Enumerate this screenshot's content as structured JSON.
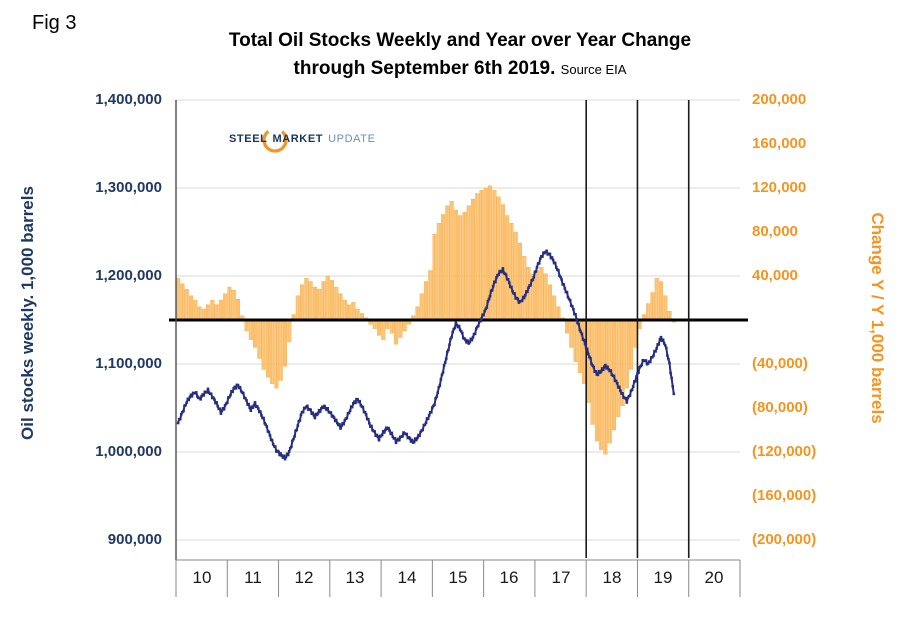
{
  "fig_label": "Fig 3",
  "title": {
    "line1": "Total Oil Stocks Weekly and Year over Year Change",
    "line2": "through September 6th 2019.",
    "source": "Source EIA"
  },
  "logo": {
    "word1": "STEEL",
    "word2": "MARKET",
    "word3": "UPDATE"
  },
  "colors": {
    "navy": "#1f3864",
    "orange": "#f79420",
    "line": "#272e82",
    "bar_fill": "#fbc87f",
    "bar_stroke": "#f5a12d",
    "grid": "#d8d8d8",
    "axis": "#8a8a8a",
    "dark_line": "#1a1a1a",
    "zero_line": "#000000"
  },
  "chart_data": {
    "type": "combo: bar + line (dual axis)",
    "title": "Total Oil Stocks Weekly and Year over Year Change through September 6th 2019",
    "grid": "horizontal light gray",
    "left_axis": {
      "label": "Oil stocks weekly. 1,000 barrels",
      "min": 900000,
      "max": 1400000,
      "tick_step": 100000,
      "ticks": [
        {
          "label": "1,400,000",
          "value": 1400000
        },
        {
          "label": "1,300,000",
          "value": 1300000
        },
        {
          "label": "1,200,000",
          "value": 1200000
        },
        {
          "label": "1,100,000",
          "value": 1100000
        },
        {
          "label": "1,000,000",
          "value": 1000000
        },
        {
          "label": "900,000",
          "value": 900000
        }
      ]
    },
    "right_axis": {
      "label": "Change Y / Y 1,000 barrels",
      "min": -200000,
      "max": 200000,
      "tick_step": 40000,
      "zero_at_left_value": 1150000,
      "ticks": [
        {
          "label": "200,000",
          "value": 200000
        },
        {
          "label": "160,000",
          "value": 160000
        },
        {
          "label": "120,000",
          "value": 120000
        },
        {
          "label": "80,000",
          "value": 80000
        },
        {
          "label": "40,000",
          "value": 40000
        },
        {
          "label": "(40,000)",
          "value": -40000
        },
        {
          "label": "(80,000)",
          "value": -80000
        },
        {
          "label": "(120,000)",
          "value": -120000
        },
        {
          "label": "(160,000)",
          "value": -160000
        },
        {
          "label": "(200,000)",
          "value": -200000
        }
      ]
    },
    "x_axis": {
      "start_year": 2010,
      "end_year": 2021,
      "labels": [
        "10",
        "11",
        "12",
        "13",
        "14",
        "15",
        "16",
        "17",
        "18",
        "19",
        "20"
      ]
    },
    "reference": {
      "zero_line_left_value": 1150000,
      "dark_vertical_year_lines": [
        2018,
        2019,
        2020
      ]
    },
    "series": [
      {
        "name": "Total oil stocks weekly",
        "type": "line",
        "axis": "left",
        "marker": "square",
        "color": "#272e82",
        "start": "2010-01",
        "interval": "monthly",
        "values": [
          1033000,
          1045000,
          1057000,
          1064000,
          1068000,
          1060000,
          1066000,
          1070000,
          1063000,
          1055000,
          1045000,
          1052000,
          1063000,
          1072000,
          1076000,
          1068000,
          1058000,
          1048000,
          1055000,
          1047000,
          1037000,
          1025000,
          1012000,
          1002000,
          997000,
          993000,
          1000000,
          1015000,
          1030000,
          1045000,
          1052000,
          1047000,
          1040000,
          1046000,
          1052000,
          1048000,
          1042000,
          1035000,
          1028000,
          1035000,
          1045000,
          1055000,
          1060000,
          1052000,
          1042000,
          1030000,
          1022000,
          1015000,
          1022000,
          1028000,
          1020000,
          1012000,
          1016000,
          1022000,
          1016000,
          1011000,
          1016000,
          1024000,
          1034000,
          1044000,
          1055000,
          1072000,
          1092000,
          1112000,
          1132000,
          1146000,
          1140000,
          1128000,
          1124000,
          1130000,
          1142000,
          1152000,
          1162000,
          1178000,
          1192000,
          1203000,
          1207000,
          1198000,
          1186000,
          1176000,
          1170000,
          1176000,
          1186000,
          1196000,
          1210000,
          1222000,
          1228000,
          1224000,
          1216000,
          1205000,
          1192000,
          1180000,
          1168000,
          1155000,
          1140000,
          1126000,
          1112000,
          1098000,
          1088000,
          1092000,
          1098000,
          1093000,
          1085000,
          1075000,
          1065000,
          1058000,
          1068000,
          1082000,
          1095000,
          1105000,
          1100000,
          1108000,
          1118000,
          1130000,
          1122000,
          1100000,
          1066000
        ]
      },
      {
        "name": "Change year over year",
        "type": "bar",
        "axis": "right",
        "fill": "#fbc87f",
        "stroke": "#f5a12d",
        "start": "2010-01",
        "interval": "monthly",
        "values": [
          38000,
          33000,
          28000,
          22000,
          18000,
          12000,
          10000,
          14000,
          18000,
          14000,
          18000,
          24000,
          30000,
          27000,
          19000,
          4000,
          -10000,
          -18000,
          -25000,
          -35000,
          -45000,
          -52000,
          -58000,
          -62000,
          -55000,
          -42000,
          -20000,
          5000,
          22000,
          32000,
          38000,
          35000,
          30000,
          28000,
          35000,
          40000,
          36000,
          30000,
          24000,
          18000,
          14000,
          16000,
          10000,
          6000,
          2000,
          -4000,
          -8000,
          -14000,
          -18000,
          -8000,
          -12000,
          -22000,
          -16000,
          -10000,
          -4000,
          4000,
          12000,
          24000,
          35000,
          45000,
          78000,
          88000,
          96000,
          104000,
          108000,
          100000,
          95000,
          98000,
          104000,
          110000,
          115000,
          118000,
          120000,
          122000,
          118000,
          112000,
          105000,
          95000,
          88000,
          80000,
          70000,
          58000,
          48000,
          42000,
          45000,
          48000,
          42000,
          32000,
          22000,
          12000,
          2000,
          -12000,
          -25000,
          -38000,
          -48000,
          -58000,
          -75000,
          -95000,
          -110000,
          -118000,
          -122000,
          -112000,
          -100000,
          -88000,
          -78000,
          -62000,
          -45000,
          -25000,
          -8000,
          5000,
          15000,
          25000,
          38000,
          35000,
          22000,
          8000,
          -2000
        ]
      }
    ]
  }
}
